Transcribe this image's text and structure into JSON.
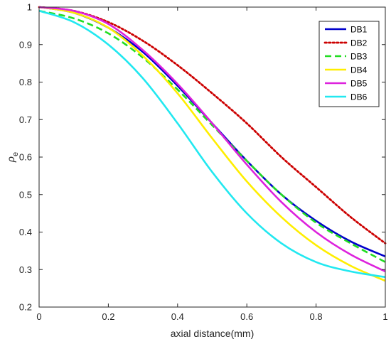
{
  "chart_data": {
    "type": "line",
    "title": "",
    "xlabel": "axial distance(mm)",
    "ylabel_base": "ρ",
    "ylabel_sub": "e",
    "xlim": [
      0,
      1
    ],
    "ylim": [
      0.2,
      1
    ],
    "xticks": [
      0,
      0.2,
      0.4,
      0.6,
      0.8,
      1
    ],
    "xtick_labels": [
      "0",
      "0.2",
      "0.4",
      "0.6",
      "0.8",
      "1"
    ],
    "yticks": [
      0.2,
      0.3,
      0.4,
      0.5,
      0.6,
      0.7,
      0.8,
      0.9,
      1
    ],
    "ytick_labels": [
      "0.2",
      "0.3",
      "0.4",
      "0.5",
      "0.6",
      "0.7",
      "0.8",
      "0.9",
      "1"
    ],
    "grid": false,
    "legend_position": "top-right",
    "x": [
      0,
      0.1,
      0.2,
      0.3,
      0.4,
      0.5,
      0.6,
      0.7,
      0.8,
      0.9,
      1.0
    ],
    "series": [
      {
        "name": "DB1",
        "color": "#0000cc",
        "style": "solid",
        "values": [
          1.0,
          0.985,
          0.945,
          0.88,
          0.79,
          0.69,
          0.59,
          0.5,
          0.43,
          0.375,
          0.335
        ]
      },
      {
        "name": "DB2",
        "color": "#cc0000",
        "style": "dotted",
        "values": [
          1.0,
          0.99,
          0.96,
          0.91,
          0.845,
          0.77,
          0.69,
          0.6,
          0.52,
          0.44,
          0.37
        ]
      },
      {
        "name": "DB3",
        "color": "#22dd22",
        "style": "dashed",
        "values": [
          0.99,
          0.97,
          0.93,
          0.865,
          0.78,
          0.685,
          0.59,
          0.5,
          0.425,
          0.37,
          0.32
        ]
      },
      {
        "name": "DB4",
        "color": "#ffee00",
        "style": "solid",
        "values": [
          1.0,
          0.985,
          0.945,
          0.87,
          0.77,
          0.65,
          0.535,
          0.44,
          0.365,
          0.31,
          0.27
        ]
      },
      {
        "name": "DB5",
        "color": "#dd22dd",
        "style": "solid",
        "values": [
          1.0,
          0.99,
          0.955,
          0.885,
          0.795,
          0.69,
          0.58,
          0.48,
          0.4,
          0.34,
          0.295
        ]
      },
      {
        "name": "DB6",
        "color": "#22e8f0",
        "style": "solid",
        "values": [
          0.99,
          0.96,
          0.9,
          0.81,
          0.69,
          0.56,
          0.45,
          0.37,
          0.32,
          0.295,
          0.28
        ]
      }
    ]
  }
}
